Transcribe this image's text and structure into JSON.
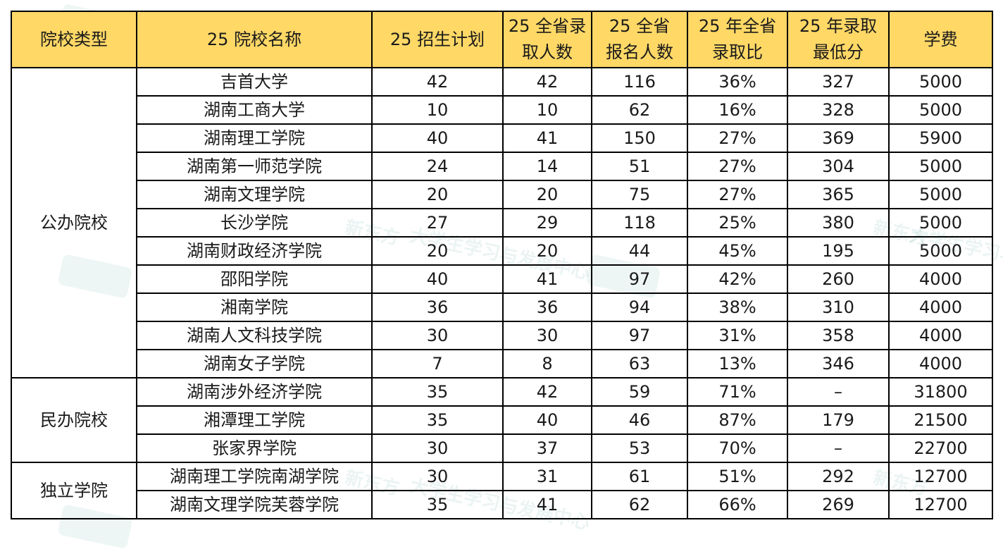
{
  "table": {
    "headers": [
      "院校类型",
      "25 院校名称",
      "25 招生计划",
      "25 全省录\n取人数",
      "25 全省\n报名人数",
      "25 年全省\n录取比",
      "25 年录取\n最低分",
      "学费"
    ],
    "groups": [
      {
        "type": "公办院校",
        "rows": [
          [
            "吉首大学",
            "42",
            "42",
            "116",
            "36%",
            "327",
            "5000"
          ],
          [
            "湖南工商大学",
            "10",
            "10",
            "62",
            "16%",
            "328",
            "5000"
          ],
          [
            "湖南理工学院",
            "40",
            "41",
            "150",
            "27%",
            "369",
            "5900"
          ],
          [
            "湖南第一师范学院",
            "24",
            "14",
            "51",
            "27%",
            "304",
            "5000"
          ],
          [
            "湖南文理学院",
            "20",
            "20",
            "75",
            "27%",
            "365",
            "5000"
          ],
          [
            "长沙学院",
            "27",
            "29",
            "118",
            "25%",
            "380",
            "5000"
          ],
          [
            "湖南财政经济学院",
            "20",
            "20",
            "44",
            "45%",
            "195",
            "5000"
          ],
          [
            "邵阳学院",
            "40",
            "41",
            "97",
            "42%",
            "260",
            "4000"
          ],
          [
            "湘南学院",
            "36",
            "36",
            "94",
            "38%",
            "310",
            "4000"
          ],
          [
            "湖南人文科技学院",
            "30",
            "30",
            "97",
            "31%",
            "358",
            "4000"
          ],
          [
            "湖南女子学院",
            "7",
            "8",
            "63",
            "13%",
            "346",
            "4000"
          ]
        ]
      },
      {
        "type": "民办院校",
        "rows": [
          [
            "湖南涉外经济学院",
            "35",
            "42",
            "59",
            "71%",
            "–",
            "31800"
          ],
          [
            "湘潭理工学院",
            "35",
            "40",
            "46",
            "87%",
            "179",
            "21500"
          ],
          [
            "张家界学院",
            "30",
            "37",
            "53",
            "70%",
            "–",
            "22700"
          ]
        ]
      },
      {
        "type": "独立学院",
        "rows": [
          [
            "湖南理工学院南湖学院",
            "30",
            "31",
            "61",
            "51%",
            "292",
            "12700"
          ],
          [
            "湖南文理学院芙蓉学院",
            "35",
            "41",
            "62",
            "66%",
            "269",
            "12700"
          ]
        ]
      }
    ]
  },
  "colors": {
    "header_bg": "#ffd866",
    "border": "#000000",
    "watermark": "#3c8c8c"
  },
  "watermarks": [
    "新东方",
    "大学生学习与发展中心",
    "专升本"
  ]
}
